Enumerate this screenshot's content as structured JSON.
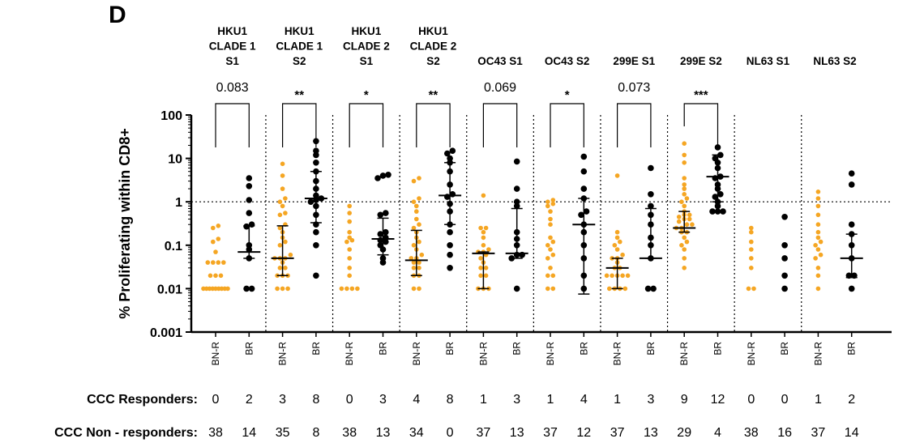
{
  "panel_label": "D",
  "chart_data": {
    "type": "scatter",
    "y_axis": {
      "label": "% Proliferating within CD8+",
      "scale": "log",
      "range": [
        0.001,
        100
      ],
      "ticks": [
        "0.001",
        "0.01",
        "0.1",
        "1",
        "10",
        "100"
      ],
      "reference_line": 1
    },
    "colors": {
      "BN-R": "#f5a623",
      "BR": "#000000"
    },
    "groups": [
      {
        "title_lines": [
          "HKU1",
          "CLADE 1",
          "S1"
        ],
        "significance": "0.083",
        "bnr": {
          "label": "BN-R",
          "values": [
            0.01,
            0.01,
            0.01,
            0.01,
            0.01,
            0.01,
            0.01,
            0.01,
            0.01,
            0.02,
            0.02,
            0.02,
            0.04,
            0.04,
            0.04,
            0.04,
            0.07,
            0.12,
            0.14,
            0.25,
            0.28
          ]
        },
        "br": {
          "label": "BR",
          "values": [
            0.01,
            0.01,
            0.05,
            0.08,
            0.1,
            0.27,
            0.3,
            0.55,
            1.1,
            2.3,
            3.5
          ],
          "median": 0.07,
          "q1": 0.05,
          "q3": 0.28
        }
      },
      {
        "title_lines": [
          "HKU1",
          "CLADE 1",
          "S2"
        ],
        "significance": "**",
        "bnr": {
          "label": "BN-R",
          "values": [
            0.01,
            0.01,
            0.01,
            0.02,
            0.02,
            0.02,
            0.03,
            0.03,
            0.04,
            0.05,
            0.05,
            0.05,
            0.06,
            0.1,
            0.12,
            0.15,
            0.2,
            0.25,
            0.3,
            0.5,
            0.55,
            0.8,
            1.0,
            1.2,
            2.0,
            4.0,
            7.5
          ],
          "median": 0.05,
          "q1": 0.02,
          "q3": 0.28
        },
        "br": {
          "label": "BR",
          "values": [
            0.02,
            0.1,
            0.2,
            0.3,
            0.5,
            0.8,
            1.0,
            1.1,
            1.2,
            1.4,
            2.0,
            3.0,
            5.0,
            8.0,
            12.0,
            15.0,
            25.0
          ],
          "median": 1.2,
          "q1": 0.33,
          "q3": 5.0
        }
      },
      {
        "title_lines": [
          "HKU1",
          "CLADE 2",
          "S1"
        ],
        "significance": "*",
        "bnr": {
          "label": "BN-R",
          "values": [
            0.01,
            0.01,
            0.01,
            0.01,
            0.02,
            0.03,
            0.05,
            0.08,
            0.12,
            0.13,
            0.15,
            0.2,
            0.35,
            0.55,
            0.8
          ]
        },
        "br": {
          "label": "BR",
          "values": [
            0.04,
            0.05,
            0.08,
            0.1,
            0.12,
            0.13,
            0.15,
            0.18,
            0.2,
            0.5,
            0.55,
            3.5,
            4.0,
            4.2
          ],
          "median": 0.14,
          "q1": 0.06,
          "q3": 0.42
        }
      },
      {
        "title_lines": [
          "HKU1",
          "CLADE 2",
          "S2"
        ],
        "significance": "**",
        "bnr": {
          "label": "BN-R",
          "values": [
            0.01,
            0.01,
            0.02,
            0.02,
            0.03,
            0.03,
            0.04,
            0.04,
            0.05,
            0.05,
            0.06,
            0.08,
            0.1,
            0.12,
            0.15,
            0.2,
            0.25,
            0.3,
            0.4,
            0.6,
            0.8,
            1.0,
            1.2,
            3.0,
            3.5
          ],
          "median": 0.045,
          "q1": 0.02,
          "q3": 0.22
        },
        "br": {
          "label": "BR",
          "values": [
            0.03,
            0.06,
            0.1,
            0.2,
            0.3,
            0.6,
            0.9,
            1.3,
            1.5,
            2.5,
            5.0,
            8.0,
            10.0,
            13.0,
            15.0
          ],
          "median": 1.4,
          "q1": 0.3,
          "q3": 8.0
        }
      },
      {
        "title_lines": [
          "OC43 S1"
        ],
        "significance": "0.069",
        "bnr": {
          "label": "BN-R",
          "values": [
            0.01,
            0.01,
            0.01,
            0.02,
            0.02,
            0.03,
            0.03,
            0.04,
            0.05,
            0.06,
            0.07,
            0.07,
            0.08,
            0.1,
            0.15,
            0.2,
            0.25,
            0.25,
            1.4
          ],
          "median": 0.065,
          "q1": 0.01,
          "q3": 0.07
        },
        "br": {
          "label": "BR",
          "values": [
            0.01,
            0.05,
            0.06,
            0.06,
            0.1,
            0.14,
            0.2,
            0.8,
            1.0,
            2.0,
            8.5
          ],
          "median": 0.065,
          "q1": 0.05,
          "q3": 0.7
        }
      },
      {
        "title_lines": [
          "OC43 S2"
        ],
        "significance": "*",
        "bnr": {
          "label": "BN-R",
          "values": [
            0.01,
            0.01,
            0.02,
            0.02,
            0.03,
            0.05,
            0.06,
            0.08,
            0.1,
            0.12,
            0.15,
            0.3,
            0.4,
            0.6,
            0.8,
            0.9,
            1.0,
            1.1
          ]
        },
        "br": {
          "label": "BR",
          "values": [
            0.01,
            0.02,
            0.05,
            0.1,
            0.2,
            0.3,
            0.5,
            0.6,
            1.2,
            2.0,
            5.0,
            11.0
          ],
          "median": 0.3,
          "q1": 0.0075,
          "q3": 1.2
        }
      },
      {
        "title_lines": [
          "299E S1"
        ],
        "significance": "0.073",
        "bnr": {
          "label": "BN-R",
          "values": [
            0.01,
            0.01,
            0.01,
            0.01,
            0.02,
            0.02,
            0.02,
            0.02,
            0.02,
            0.03,
            0.03,
            0.04,
            0.05,
            0.05,
            0.06,
            0.08,
            0.1,
            0.12,
            0.15,
            0.2,
            4.0
          ],
          "median": 0.03,
          "q1": 0.01,
          "q3": 0.05
        },
        "br": {
          "label": "BR",
          "values": [
            0.01,
            0.01,
            0.05,
            0.1,
            0.15,
            0.3,
            0.5,
            0.8,
            1.5,
            6.0
          ],
          "median": 0.05,
          "q1": 0.05,
          "q3": 0.7
        }
      },
      {
        "title_lines": [
          "299E S2"
        ],
        "significance": "***",
        "bnr": {
          "label": "BN-R",
          "values": [
            0.03,
            0.05,
            0.08,
            0.1,
            0.12,
            0.15,
            0.2,
            0.2,
            0.25,
            0.25,
            0.3,
            0.3,
            0.35,
            0.4,
            0.4,
            0.45,
            0.5,
            0.5,
            0.6,
            0.8,
            1.0,
            1.2,
            1.5,
            2.0,
            2.5,
            3.5,
            8.0,
            12.0,
            22.0
          ],
          "median": 0.25,
          "q1": 0.2,
          "q3": 0.6
        },
        "br": {
          "label": "BR",
          "values": [
            0.6,
            0.6,
            0.6,
            0.8,
            1.0,
            1.3,
            1.5,
            2.0,
            2.5,
            3.5,
            3.8,
            6.0,
            8.0,
            10.0,
            12.0,
            18.0
          ],
          "median": 3.8,
          "q1": 1.0,
          "q3": 12.0
        }
      },
      {
        "title_lines": [
          "NL63 S1"
        ],
        "significance": "",
        "bnr": {
          "label": "BN-R",
          "values": [
            0.01,
            0.01,
            0.03,
            0.05,
            0.08,
            0.12,
            0.2,
            0.25
          ]
        },
        "br": {
          "label": "BR",
          "values": [
            0.01,
            0.02,
            0.05,
            0.1,
            0.45
          ]
        }
      },
      {
        "title_lines": [
          "NL63 S2"
        ],
        "significance": "",
        "bnr": {
          "label": "BN-R",
          "values": [
            0.01,
            0.02,
            0.03,
            0.05,
            0.06,
            0.08,
            0.1,
            0.12,
            0.15,
            0.2,
            0.3,
            0.5,
            0.8,
            1.2,
            1.7
          ]
        },
        "br": {
          "label": "BR",
          "values": [
            0.01,
            0.02,
            0.02,
            0.05,
            0.1,
            0.18,
            0.3,
            2.5,
            4.5
          ],
          "median": 0.05,
          "q1": 0.018,
          "q3": 0.18
        }
      }
    ]
  },
  "summary_table": {
    "rows": [
      {
        "label": "CCC Responders:",
        "values": [
          "0",
          "2",
          "3",
          "8",
          "0",
          "3",
          "4",
          "8",
          "1",
          "3",
          "1",
          "4",
          "1",
          "3",
          "9",
          "12",
          "0",
          "0",
          "1",
          "2"
        ]
      },
      {
        "label": "CCC Non - responders:",
        "values": [
          "38",
          "14",
          "35",
          "8",
          "38",
          "13",
          "34",
          "0",
          "37",
          "13",
          "37",
          "12",
          "37",
          "13",
          "29",
          "4",
          "38",
          "16",
          "37",
          "14"
        ]
      }
    ]
  }
}
